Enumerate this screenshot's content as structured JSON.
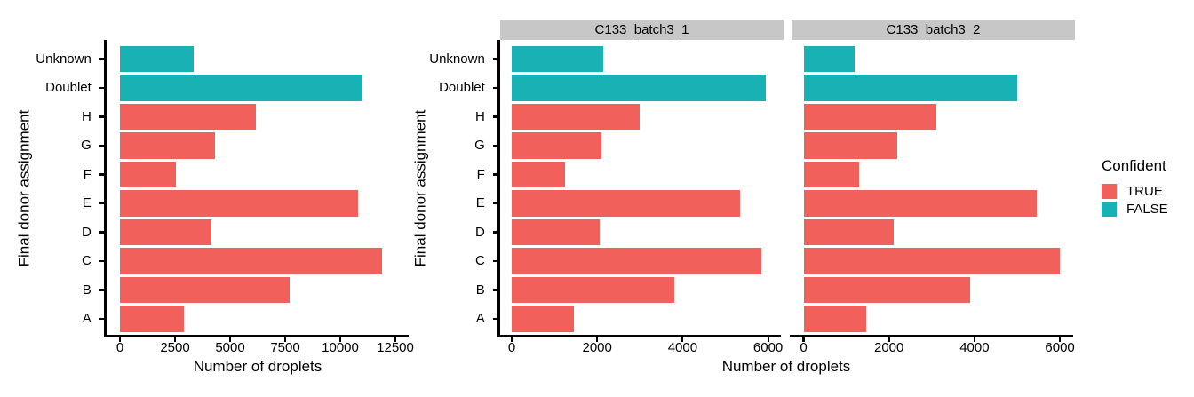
{
  "palette": {
    "confident_true": "#f2605c",
    "confident_false": "#18b2b5",
    "strip_background": "#c7c7c7",
    "axis_color": "#000000",
    "text_color": "#000000"
  },
  "axis_titles": {
    "x": "Number of droplets",
    "y": "Final donor assignment"
  },
  "legend": {
    "title": "Confident",
    "position": "right",
    "items": [
      {
        "label": "TRUE",
        "color_key": "confident_true"
      },
      {
        "label": "FALSE",
        "color_key": "confident_false"
      }
    ]
  },
  "chart_data": [
    {
      "id": "total",
      "type": "bar",
      "orientation": "horizontal",
      "facet_label": null,
      "xlabel": "Number of droplets",
      "ylabel": "Final donor assignment",
      "categories": [
        "Unknown",
        "Doublet",
        "H",
        "G",
        "F",
        "E",
        "D",
        "C",
        "B",
        "A"
      ],
      "values": [
        3350,
        11000,
        6150,
        4300,
        2550,
        10800,
        4150,
        11900,
        7700,
        2900
      ],
      "confident": [
        false,
        false,
        true,
        true,
        true,
        true,
        true,
        true,
        true,
        true
      ],
      "xlim": [
        0,
        12500
      ],
      "xticks": [
        0,
        2500,
        5000,
        7500,
        10000,
        12500
      ],
      "grid": false,
      "show_y_labels": true
    },
    {
      "id": "c133-batch3-1",
      "type": "bar",
      "orientation": "horizontal",
      "facet_label": "C133_batch3_1",
      "xlabel": "Number of droplets",
      "ylabel": "Final donor assignment",
      "categories": [
        "Unknown",
        "Doublet",
        "H",
        "G",
        "F",
        "E",
        "D",
        "C",
        "B",
        "A"
      ],
      "values": [
        2150,
        5950,
        3000,
        2100,
        1250,
        5350,
        2050,
        5850,
        3800,
        1450
      ],
      "confident": [
        false,
        false,
        true,
        true,
        true,
        true,
        true,
        true,
        true,
        true
      ],
      "xlim": [
        0,
        6000
      ],
      "xticks": [
        0,
        2000,
        4000,
        6000
      ],
      "grid": false,
      "show_y_labels": true
    },
    {
      "id": "c133-batch3-2",
      "type": "bar",
      "orientation": "horizontal",
      "facet_label": "C133_batch3_2",
      "xlabel": "Number of droplets",
      "ylabel": "Final donor assignment",
      "categories": [
        "Unknown",
        "Doublet",
        "H",
        "G",
        "F",
        "E",
        "D",
        "C",
        "B",
        "A"
      ],
      "values": [
        1200,
        5000,
        3100,
        2200,
        1300,
        5450,
        2100,
        6000,
        3900,
        1470
      ],
      "confident": [
        false,
        false,
        true,
        true,
        true,
        true,
        true,
        true,
        true,
        true
      ],
      "xlim": [
        0,
        6000
      ],
      "xticks": [
        0,
        2000,
        4000,
        6000
      ],
      "grid": false,
      "show_y_labels": false
    }
  ]
}
